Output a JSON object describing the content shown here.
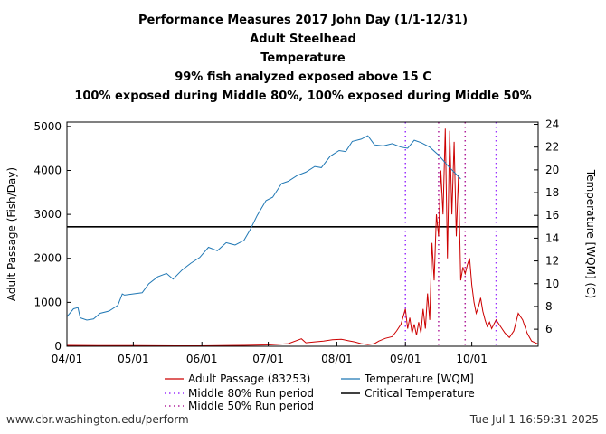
{
  "titles": [
    "Performance Measures 2017 John Day (1/1-12/31)",
    "Adult Steelhead",
    "Temperature",
    "99% fish analyzed exposed above 15 C",
    "100% exposed during Middle 80%, 100% exposed during Middle 50%"
  ],
  "footer": {
    "url": "www.cbr.washington.edu/perform",
    "timestamp": "Tue Jul  1 16:59:31 2025"
  },
  "chart_data": {
    "type": "line",
    "xlabel": "",
    "ylabel": "Adult Passage (Fish/Day)",
    "y2label": "Temperature [WQM] (C)",
    "xlim": [
      "2017-04-01",
      "2017-10-31"
    ],
    "ylim": [
      0,
      5100
    ],
    "y2lim": [
      4.5,
      24.2
    ],
    "x_ticks": [
      "04/01",
      "05/01",
      "06/01",
      "07/01",
      "08/01",
      "09/01",
      "10/01"
    ],
    "y_ticks": [
      0,
      1000,
      2000,
      3000,
      4000,
      5000
    ],
    "y2_ticks": [
      6,
      8,
      10,
      12,
      14,
      16,
      18,
      20,
      22,
      24
    ],
    "grid": false,
    "legend_position": "bottom",
    "colors": {
      "passage": "#cc0000",
      "temperature": "#1f77b4",
      "middle80": "#9b30ff",
      "middle50": "#b0209b",
      "critical": "#000000"
    },
    "legend": [
      "Adult Passage (83253)",
      "Temperature [WQM]",
      "Middle 80% Run period",
      "Critical Temperature",
      "Middle 50% Run period"
    ],
    "critical_temperature": 15,
    "middle80_run_period": [
      "2017-09-01",
      "2017-10-12"
    ],
    "middle50_run_period": [
      "2017-09-16",
      "2017-09-28"
    ],
    "series": [
      {
        "name": "Adult Passage (83253)",
        "axis": "left",
        "points": [
          [
            "2017-04-01",
            20
          ],
          [
            "2017-04-15",
            15
          ],
          [
            "2017-05-01",
            15
          ],
          [
            "2017-05-20",
            10
          ],
          [
            "2017-06-01",
            10
          ],
          [
            "2017-06-20",
            20
          ],
          [
            "2017-07-01",
            30
          ],
          [
            "2017-07-10",
            60
          ],
          [
            "2017-07-16",
            170
          ],
          [
            "2017-07-18",
            80
          ],
          [
            "2017-07-22",
            100
          ],
          [
            "2017-07-26",
            120
          ],
          [
            "2017-07-30",
            150
          ],
          [
            "2017-08-03",
            160
          ],
          [
            "2017-08-06",
            130
          ],
          [
            "2017-08-09",
            100
          ],
          [
            "2017-08-12",
            60
          ],
          [
            "2017-08-15",
            40
          ],
          [
            "2017-08-18",
            60
          ],
          [
            "2017-08-20",
            120
          ],
          [
            "2017-08-23",
            180
          ],
          [
            "2017-08-26",
            220
          ],
          [
            "2017-08-28",
            350
          ],
          [
            "2017-08-30",
            500
          ],
          [
            "2017-09-01",
            850
          ],
          [
            "2017-09-02",
            400
          ],
          [
            "2017-09-03",
            650
          ],
          [
            "2017-09-04",
            300
          ],
          [
            "2017-09-05",
            500
          ],
          [
            "2017-09-06",
            250
          ],
          [
            "2017-09-07",
            550
          ],
          [
            "2017-09-08",
            300
          ],
          [
            "2017-09-09",
            850
          ],
          [
            "2017-09-10",
            400
          ],
          [
            "2017-09-11",
            1200
          ],
          [
            "2017-09-12",
            600
          ],
          [
            "2017-09-13",
            2350
          ],
          [
            "2017-09-14",
            1500
          ],
          [
            "2017-09-15",
            3000
          ],
          [
            "2017-09-16",
            2500
          ],
          [
            "2017-09-17",
            4000
          ],
          [
            "2017-09-18",
            3000
          ],
          [
            "2017-09-19",
            4950
          ],
          [
            "2017-09-20",
            2000
          ],
          [
            "2017-09-21",
            4900
          ],
          [
            "2017-09-22",
            3000
          ],
          [
            "2017-09-23",
            4650
          ],
          [
            "2017-09-24",
            2500
          ],
          [
            "2017-09-25",
            3900
          ],
          [
            "2017-09-26",
            1500
          ],
          [
            "2017-09-27",
            1800
          ],
          [
            "2017-09-28",
            1650
          ],
          [
            "2017-09-29",
            1850
          ],
          [
            "2017-09-30",
            2000
          ],
          [
            "2017-10-01",
            1400
          ],
          [
            "2017-10-02",
            1000
          ],
          [
            "2017-10-03",
            750
          ],
          [
            "2017-10-04",
            900
          ],
          [
            "2017-10-05",
            1100
          ],
          [
            "2017-10-06",
            800
          ],
          [
            "2017-10-07",
            600
          ],
          [
            "2017-10-08",
            450
          ],
          [
            "2017-10-09",
            550
          ],
          [
            "2017-10-10",
            400
          ],
          [
            "2017-10-12",
            600
          ],
          [
            "2017-10-14",
            450
          ],
          [
            "2017-10-16",
            300
          ],
          [
            "2017-10-18",
            200
          ],
          [
            "2017-10-20",
            350
          ],
          [
            "2017-10-22",
            750
          ],
          [
            "2017-10-24",
            600
          ],
          [
            "2017-10-26",
            300
          ],
          [
            "2017-10-28",
            120
          ],
          [
            "2017-10-31",
            50
          ]
        ]
      },
      {
        "name": "Temperature [WQM]",
        "axis": "right",
        "points": [
          [
            "2017-04-01",
            7.1
          ],
          [
            "2017-04-04",
            7.8
          ],
          [
            "2017-04-06",
            7.9
          ],
          [
            "2017-04-07",
            7.0
          ],
          [
            "2017-04-10",
            6.8
          ],
          [
            "2017-04-13",
            6.9
          ],
          [
            "2017-04-16",
            7.4
          ],
          [
            "2017-04-20",
            7.6
          ],
          [
            "2017-04-24",
            8.1
          ],
          [
            "2017-04-26",
            9.1
          ],
          [
            "2017-04-27",
            9.0
          ],
          [
            "2017-05-05",
            9.2
          ],
          [
            "2017-05-08",
            10.0
          ],
          [
            "2017-05-12",
            10.6
          ],
          [
            "2017-05-16",
            10.9
          ],
          [
            "2017-05-19",
            10.4
          ],
          [
            "2017-05-23",
            11.2
          ],
          [
            "2017-05-27",
            11.8
          ],
          [
            "2017-05-31",
            12.3
          ],
          [
            "2017-06-04",
            13.2
          ],
          [
            "2017-06-08",
            12.9
          ],
          [
            "2017-06-12",
            13.6
          ],
          [
            "2017-06-16",
            13.4
          ],
          [
            "2017-06-20",
            13.8
          ],
          [
            "2017-06-23",
            14.8
          ],
          [
            "2017-06-26",
            16.0
          ],
          [
            "2017-06-30",
            17.3
          ],
          [
            "2017-07-03",
            17.6
          ],
          [
            "2017-07-07",
            18.8
          ],
          [
            "2017-07-10",
            19.0
          ],
          [
            "2017-07-14",
            19.5
          ],
          [
            "2017-07-18",
            19.8
          ],
          [
            "2017-07-22",
            20.3
          ],
          [
            "2017-07-25",
            20.2
          ],
          [
            "2017-07-29",
            21.2
          ],
          [
            "2017-08-02",
            21.7
          ],
          [
            "2017-08-05",
            21.6
          ],
          [
            "2017-08-08",
            22.5
          ],
          [
            "2017-08-12",
            22.7
          ],
          [
            "2017-08-15",
            23.0
          ],
          [
            "2017-08-18",
            22.2
          ],
          [
            "2017-08-22",
            22.1
          ],
          [
            "2017-08-26",
            22.3
          ],
          [
            "2017-08-30",
            22.0
          ],
          [
            "2017-09-02",
            21.9
          ],
          [
            "2017-09-05",
            22.6
          ],
          [
            "2017-09-08",
            22.4
          ],
          [
            "2017-09-12",
            22.0
          ],
          [
            "2017-09-16",
            21.3
          ],
          [
            "2017-09-20",
            20.4
          ],
          [
            "2017-09-24",
            19.6
          ],
          [
            "2017-09-26",
            19.2
          ]
        ]
      }
    ]
  }
}
